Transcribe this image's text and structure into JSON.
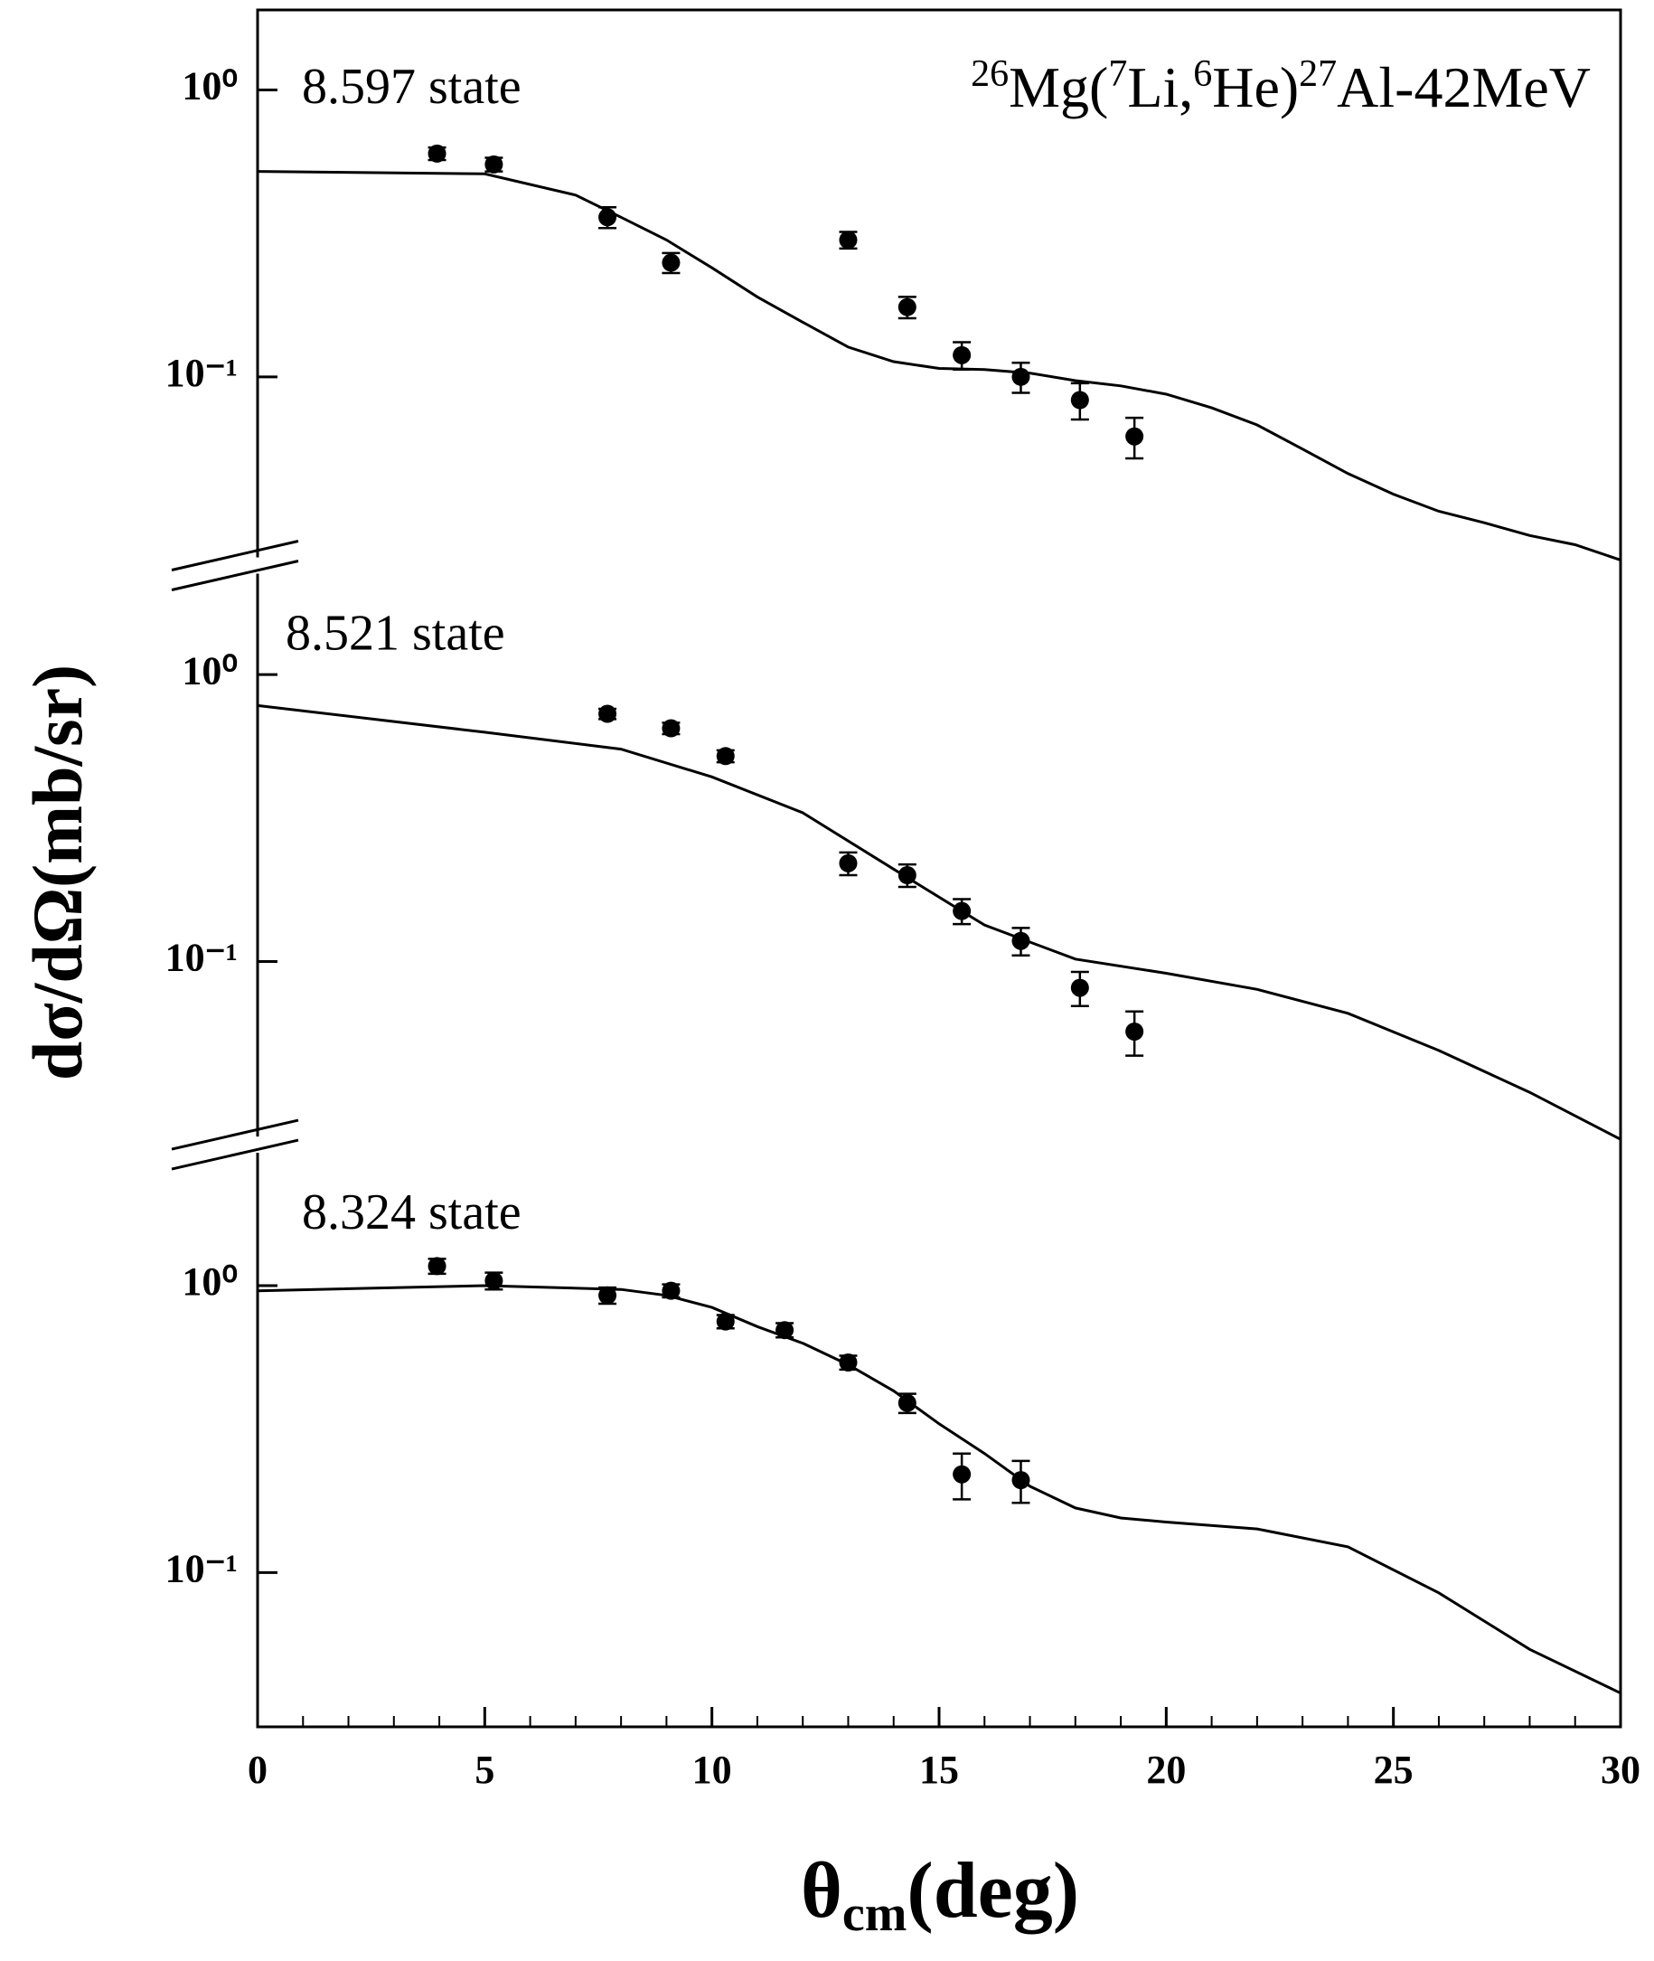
{
  "chart_data": [
    {
      "type": "scatter",
      "label": "8.597 state",
      "title": [
        "26",
        "Mg(",
        "7",
        "Li,",
        "6",
        "He)",
        "27",
        "Al-42MeV"
      ],
      "ylog": true,
      "ylim": [
        0.022,
        1.9
      ],
      "yticks": [
        {
          "value": 0.1,
          "label": "10⁻¹"
        },
        {
          "value": 1,
          "label": "10⁰"
        }
      ],
      "curve": {
        "color": "#000000",
        "x": [
          0,
          5,
          7,
          8,
          9,
          10,
          11,
          12,
          13,
          14,
          15,
          16,
          17,
          18,
          19,
          20,
          21,
          22,
          23,
          24,
          25,
          26,
          27,
          28,
          29,
          30
        ],
        "values": [
          0.52,
          0.51,
          0.43,
          0.36,
          0.3,
          0.24,
          0.19,
          0.155,
          0.127,
          0.113,
          0.107,
          0.106,
          0.103,
          0.097,
          0.093,
          0.087,
          0.078,
          0.068,
          0.056,
          0.046,
          0.039,
          0.034,
          0.031,
          0.028,
          0.026,
          0.023
        ]
      },
      "points": {
        "color": "#000000",
        "x": [
          3.95,
          5.2,
          7.7,
          9.1,
          13.0,
          14.3,
          15.5,
          16.8,
          18.1,
          19.3
        ],
        "values": [
          0.6,
          0.55,
          0.36,
          0.25,
          0.3,
          0.175,
          0.119,
          0.1,
          0.083,
          0.062
        ],
        "errors": [
          0.03,
          0.03,
          0.03,
          0.02,
          0.02,
          0.015,
          0.013,
          0.012,
          0.012,
          0.01
        ]
      }
    },
    {
      "type": "scatter",
      "label": "8.521 state",
      "ylabel": "dσ/dΩ(mb/sr)",
      "ylog": true,
      "ylim": [
        0.023,
        2.4
      ],
      "yticks": [
        {
          "value": 0.1,
          "label": "10⁻¹"
        },
        {
          "value": 1,
          "label": "10⁰"
        }
      ],
      "curve": {
        "color": "#000000",
        "x": [
          0,
          5,
          8,
          10,
          12,
          14,
          16,
          18,
          20,
          22,
          24,
          26,
          28,
          30
        ],
        "values": [
          0.78,
          0.63,
          0.55,
          0.44,
          0.33,
          0.21,
          0.134,
          0.102,
          0.091,
          0.08,
          0.066,
          0.049,
          0.035,
          0.024
        ]
      },
      "points": {
        "color": "#000000",
        "x": [
          7.7,
          9.1,
          10.3,
          13.0,
          14.3,
          15.5,
          16.8,
          18.1,
          19.3
        ],
        "values": [
          0.73,
          0.65,
          0.52,
          0.22,
          0.2,
          0.15,
          0.118,
          0.081,
          0.057
        ],
        "errors": [
          0.03,
          0.03,
          0.025,
          0.02,
          0.018,
          0.015,
          0.013,
          0.011,
          0.01
        ]
      }
    },
    {
      "type": "scatter",
      "label": "8.324 state",
      "xlabel": [
        "θ",
        "cm",
        "(deg)"
      ],
      "xlim": [
        0,
        30
      ],
      "xticks": [
        0,
        5,
        10,
        15,
        20,
        25,
        30
      ],
      "xminorticks": [
        1,
        2,
        3,
        4,
        6,
        7,
        8,
        9,
        11,
        12,
        13,
        14,
        16,
        17,
        18,
        19,
        21,
        22,
        23,
        24,
        26,
        27,
        28,
        29
      ],
      "ylog": true,
      "ylim": [
        0.029,
        3.1
      ],
      "yticks": [
        {
          "value": 0.1,
          "label": "10⁻¹"
        },
        {
          "value": 1,
          "label": "10⁰"
        }
      ],
      "curve": {
        "color": "#000000",
        "x": [
          0,
          5,
          8,
          9,
          10,
          11,
          12,
          13,
          14,
          15,
          16,
          17,
          18,
          19,
          20,
          22,
          24,
          26,
          28,
          30
        ],
        "values": [
          0.96,
          1.0,
          0.97,
          0.925,
          0.84,
          0.72,
          0.63,
          0.53,
          0.43,
          0.33,
          0.26,
          0.2,
          0.168,
          0.155,
          0.15,
          0.142,
          0.123,
          0.085,
          0.054,
          0.038
        ]
      },
      "points": {
        "color": "#000000",
        "x": [
          3.95,
          5.2,
          7.7,
          9.1,
          10.3,
          11.6,
          13.0,
          14.3,
          15.5,
          16.8
        ],
        "values": [
          1.17,
          1.04,
          0.925,
          0.96,
          0.75,
          0.7,
          0.54,
          0.39,
          0.22,
          0.21
        ],
        "errors": [
          0.07,
          0.07,
          0.06,
          0.05,
          0.04,
          0.04,
          0.03,
          0.03,
          0.04,
          0.035
        ]
      }
    }
  ]
}
